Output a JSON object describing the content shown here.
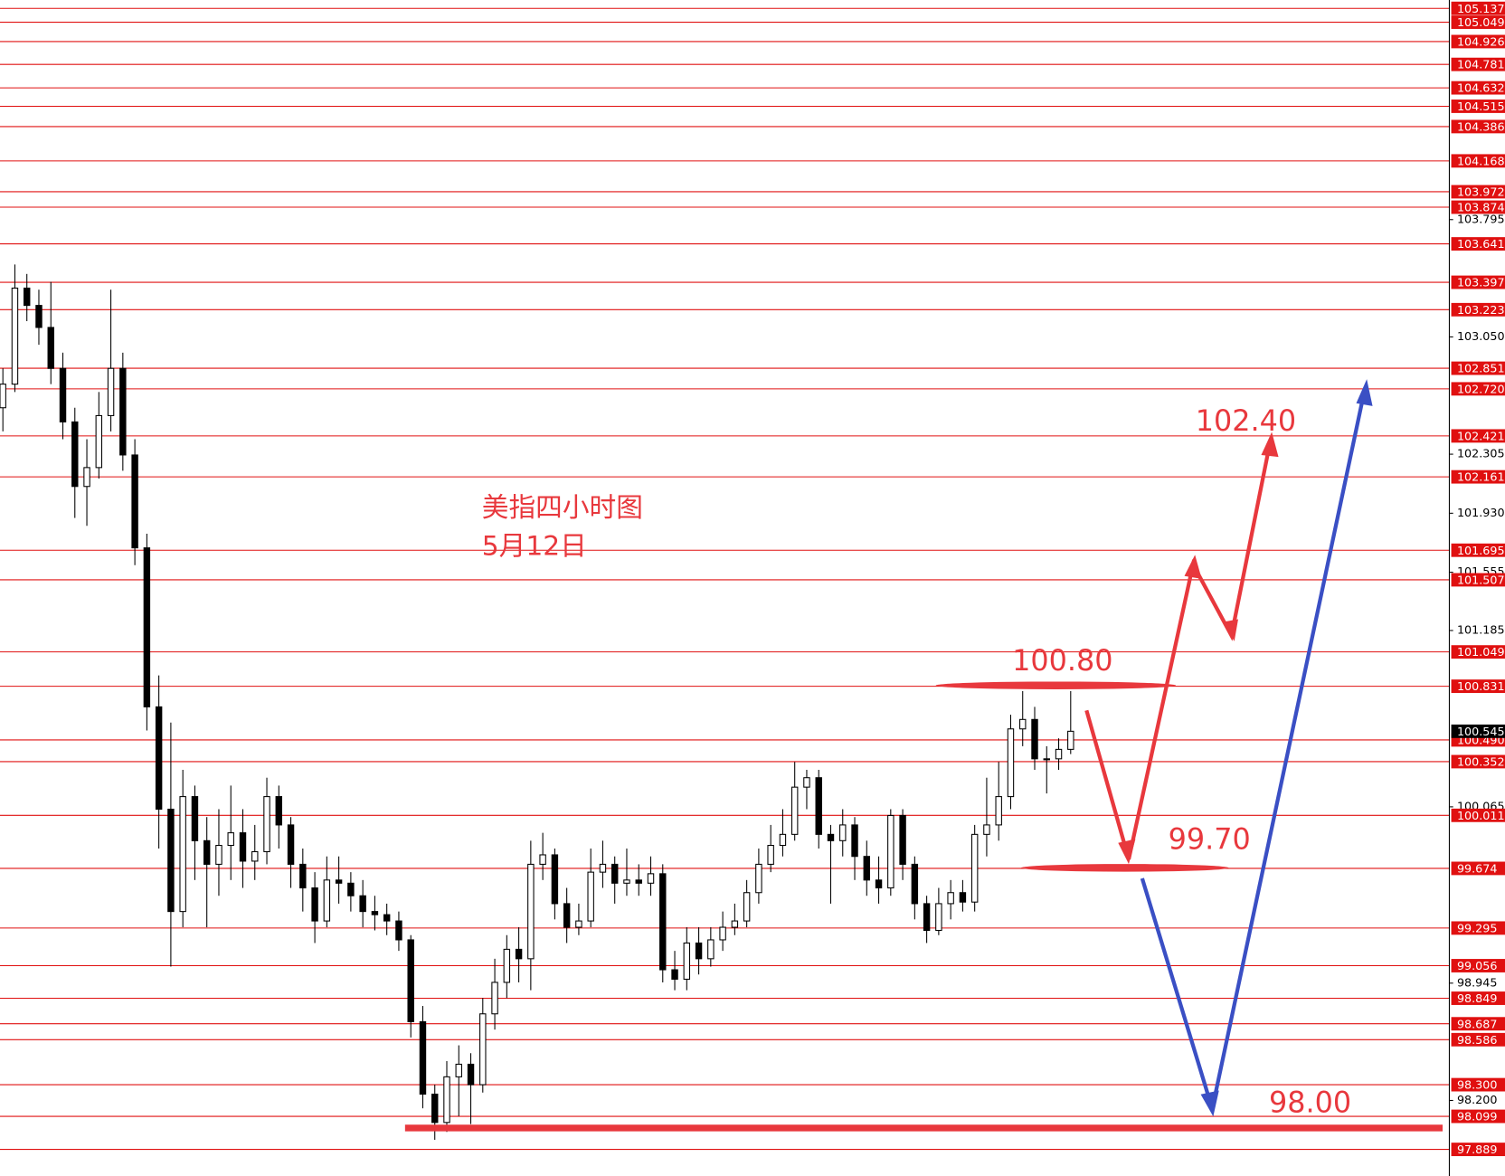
{
  "chart_data": {
    "type": "candlestick",
    "title": "美指四小时图",
    "subtitle": "5月12日",
    "ylim": [
      97.72,
      105.19
    ],
    "up_color": "#ffffff",
    "down_color": "#000000",
    "level_color": "#e01010",
    "levels": [
      105.137,
      105.049,
      104.926,
      104.781,
      104.632,
      104.515,
      104.386,
      104.168,
      103.972,
      103.874,
      103.641,
      103.397,
      103.223,
      102.851,
      {
        "value": 102.72,
        "label": "102.720"
      },
      102.421,
      102.161,
      101.695,
      101.507,
      101.049,
      100.831,
      {
        "value": 100.49,
        "label": "100.490"
      },
      100.352,
      100.011,
      99.674,
      99.295,
      99.056,
      98.849,
      98.687,
      98.586,
      {
        "value": 98.3,
        "label": "98.300"
      },
      98.099,
      97.889
    ],
    "yticks": [
      103.795,
      {
        "value": 103.05,
        "label": "103.050"
      },
      102.305,
      {
        "value": 101.93,
        "label": "101.930"
      },
      101.555,
      101.185,
      100.065,
      98.945,
      {
        "value": 98.2,
        "label": "98.200"
      }
    ],
    "current_price": 100.545,
    "annotations": [
      "102.40",
      "100.80",
      "99.70",
      "98.00"
    ],
    "ohlc": [
      [
        102.6,
        102.85,
        102.45,
        102.75
      ],
      [
        102.75,
        103.51,
        102.7,
        103.36
      ],
      [
        103.36,
        103.45,
        103.15,
        103.25
      ],
      [
        103.25,
        103.35,
        103.0,
        103.11
      ],
      [
        103.11,
        103.4,
        102.75,
        102.85
      ],
      [
        102.85,
        102.95,
        102.4,
        102.51
      ],
      [
        102.51,
        102.6,
        101.9,
        102.1
      ],
      [
        102.1,
        102.4,
        101.85,
        102.22
      ],
      [
        102.22,
        102.7,
        102.15,
        102.55
      ],
      [
        102.55,
        103.35,
        102.45,
        102.85
      ],
      [
        102.85,
        102.95,
        102.2,
        102.3
      ],
      [
        102.3,
        102.4,
        101.6,
        101.71
      ],
      [
        101.71,
        101.8,
        100.55,
        100.7
      ],
      [
        100.7,
        100.9,
        99.8,
        100.05
      ],
      [
        100.05,
        100.6,
        99.05,
        99.4
      ],
      [
        99.4,
        100.3,
        99.3,
        100.13
      ],
      [
        100.13,
        100.2,
        99.6,
        99.85
      ],
      [
        99.85,
        100.0,
        99.3,
        99.7
      ],
      [
        99.7,
        100.05,
        99.5,
        99.82
      ],
      [
        99.82,
        100.2,
        99.6,
        99.9
      ],
      [
        99.9,
        100.05,
        99.55,
        99.72
      ],
      [
        99.72,
        99.95,
        99.6,
        99.78
      ],
      [
        99.78,
        100.25,
        99.7,
        100.13
      ],
      [
        100.13,
        100.2,
        99.8,
        99.95
      ],
      [
        99.95,
        100.0,
        99.55,
        99.7
      ],
      [
        99.7,
        99.8,
        99.4,
        99.55
      ],
      [
        99.55,
        99.65,
        99.2,
        99.34
      ],
      [
        99.34,
        99.75,
        99.3,
        99.6
      ],
      [
        99.6,
        99.75,
        99.45,
        99.58
      ],
      [
        99.58,
        99.65,
        99.4,
        99.5
      ],
      [
        99.5,
        99.6,
        99.3,
        99.4
      ],
      [
        99.4,
        99.5,
        99.28,
        99.38
      ],
      [
        99.38,
        99.45,
        99.25,
        99.34
      ],
      [
        99.34,
        99.4,
        99.15,
        99.22
      ],
      [
        99.22,
        99.25,
        98.6,
        98.7
      ],
      [
        98.7,
        98.8,
        98.15,
        98.24
      ],
      [
        98.24,
        98.3,
        97.95,
        98.06
      ],
      [
        98.06,
        98.45,
        98.0,
        98.35
      ],
      [
        98.35,
        98.55,
        98.1,
        98.43
      ],
      [
        98.43,
        98.5,
        98.05,
        98.3
      ],
      [
        98.3,
        98.85,
        98.25,
        98.75
      ],
      [
        98.75,
        99.1,
        98.65,
        98.95
      ],
      [
        98.95,
        99.25,
        98.85,
        99.16
      ],
      [
        99.16,
        99.3,
        98.95,
        99.1
      ],
      [
        99.1,
        99.85,
        98.9,
        99.7
      ],
      [
        99.7,
        99.9,
        99.6,
        99.76
      ],
      [
        99.76,
        99.8,
        99.35,
        99.45
      ],
      [
        99.45,
        99.55,
        99.2,
        99.3
      ],
      [
        99.3,
        99.45,
        99.25,
        99.34
      ],
      [
        99.34,
        99.8,
        99.3,
        99.65
      ],
      [
        99.65,
        99.85,
        99.55,
        99.7
      ],
      [
        99.7,
        99.75,
        99.45,
        99.58
      ],
      [
        99.58,
        99.8,
        99.5,
        99.6
      ],
      [
        99.6,
        99.7,
        99.5,
        99.58
      ],
      [
        99.58,
        99.75,
        99.5,
        99.64
      ],
      [
        99.64,
        99.7,
        98.95,
        99.03
      ],
      [
        99.03,
        99.15,
        98.9,
        98.97
      ],
      [
        98.97,
        99.3,
        98.9,
        99.2
      ],
      [
        99.2,
        99.3,
        99.0,
        99.1
      ],
      [
        99.1,
        99.3,
        99.05,
        99.22
      ],
      [
        99.22,
        99.4,
        99.15,
        99.3
      ],
      [
        99.3,
        99.45,
        99.25,
        99.34
      ],
      [
        99.34,
        99.6,
        99.3,
        99.52
      ],
      [
        99.52,
        99.8,
        99.45,
        99.7
      ],
      [
        99.7,
        99.95,
        99.65,
        99.82
      ],
      [
        99.82,
        100.05,
        99.75,
        99.89
      ],
      [
        99.89,
        100.35,
        99.85,
        100.19
      ],
      [
        100.19,
        100.3,
        100.05,
        100.25
      ],
      [
        100.25,
        100.3,
        99.8,
        99.89
      ],
      [
        99.89,
        99.95,
        99.45,
        99.85
      ],
      [
        99.85,
        100.05,
        99.75,
        99.95
      ],
      [
        99.95,
        100.0,
        99.6,
        99.75
      ],
      [
        99.75,
        99.85,
        99.5,
        99.6
      ],
      [
        99.6,
        99.75,
        99.45,
        99.55
      ],
      [
        99.55,
        100.05,
        99.5,
        100.01
      ],
      [
        100.01,
        100.05,
        99.6,
        99.7
      ],
      [
        99.7,
        99.75,
        99.35,
        99.45
      ],
      [
        99.45,
        99.5,
        99.2,
        99.28
      ],
      [
        99.28,
        99.55,
        99.25,
        99.45
      ],
      [
        99.45,
        99.6,
        99.35,
        99.52
      ],
      [
        99.52,
        99.6,
        99.4,
        99.46
      ],
      [
        99.46,
        99.95,
        99.4,
        99.89
      ],
      [
        99.89,
        100.25,
        99.75,
        99.95
      ],
      [
        99.95,
        100.35,
        99.85,
        100.13
      ],
      [
        100.13,
        100.65,
        100.05,
        100.56
      ],
      [
        100.56,
        100.8,
        100.45,
        100.62
      ],
      [
        100.62,
        100.7,
        100.3,
        100.37
      ],
      [
        100.37,
        100.45,
        100.15,
        100.37
      ],
      [
        100.37,
        100.5,
        100.3,
        100.43
      ],
      [
        100.43,
        100.8,
        100.4,
        100.545
      ]
    ]
  }
}
